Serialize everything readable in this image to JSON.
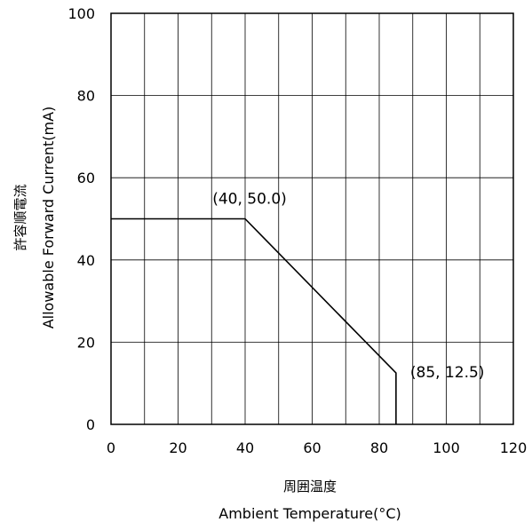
{
  "chart_data": {
    "type": "line",
    "xlabel_jp": "周囲温度",
    "xlabel": "Ambient Temperature(°C)",
    "ylabel_jp": "許容順電流",
    "ylabel": "Allowable Forward Current(mA)",
    "xlim": [
      0,
      120
    ],
    "ylim": [
      0,
      100
    ],
    "x_ticks": [
      "0",
      "20",
      "40",
      "60",
      "80",
      "100",
      "120"
    ],
    "y_ticks": [
      "0",
      "20",
      "40",
      "60",
      "80",
      "100"
    ],
    "x_minor_step": 10,
    "y_grid_step": 20,
    "grid": true,
    "series": [
      {
        "x": [
          0,
          40,
          85,
          85
        ],
        "y": [
          50.0,
          50.0,
          12.5,
          0
        ]
      }
    ],
    "annotations": [
      {
        "text": "(40, 50.0)",
        "x": 40,
        "y": 50.0
      },
      {
        "text": "(85, 12.5)",
        "x": 85,
        "y": 12.5
      }
    ],
    "line_color": "#000000"
  }
}
